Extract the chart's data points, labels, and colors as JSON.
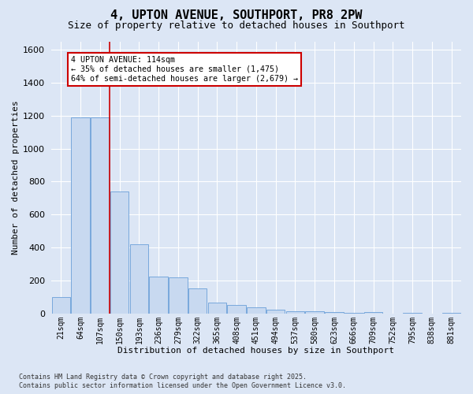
{
  "title": "4, UPTON AVENUE, SOUTHPORT, PR8 2PW",
  "subtitle": "Size of property relative to detached houses in Southport",
  "xlabel": "Distribution of detached houses by size in Southport",
  "ylabel": "Number of detached properties",
  "categories": [
    "21sqm",
    "64sqm",
    "107sqm",
    "150sqm",
    "193sqm",
    "236sqm",
    "279sqm",
    "322sqm",
    "365sqm",
    "408sqm",
    "451sqm",
    "494sqm",
    "537sqm",
    "580sqm",
    "623sqm",
    "666sqm",
    "709sqm",
    "752sqm",
    "795sqm",
    "838sqm",
    "881sqm"
  ],
  "values": [
    100,
    1190,
    1190,
    740,
    420,
    225,
    220,
    150,
    65,
    50,
    35,
    25,
    15,
    12,
    8,
    5,
    8,
    0,
    4,
    0,
    4
  ],
  "bar_color": "#c8d9f0",
  "bar_edge_color": "#6a9fd8",
  "property_line_x": 2.5,
  "property_label": "4 UPTON AVENUE: 114sqm",
  "annotation_line1": "← 35% of detached houses are smaller (1,475)",
  "annotation_line2": "64% of semi-detached houses are larger (2,679) →",
  "annotation_box_facecolor": "#ffffff",
  "annotation_box_edgecolor": "#cc0000",
  "vline_color": "#cc0000",
  "ylim": [
    0,
    1650
  ],
  "yticks": [
    0,
    200,
    400,
    600,
    800,
    1000,
    1200,
    1400,
    1600
  ],
  "background_color": "#dce6f5",
  "grid_color": "#ffffff",
  "title_fontsize": 11,
  "subtitle_fontsize": 9,
  "footer_line1": "Contains HM Land Registry data © Crown copyright and database right 2025.",
  "footer_line2": "Contains public sector information licensed under the Open Government Licence v3.0."
}
